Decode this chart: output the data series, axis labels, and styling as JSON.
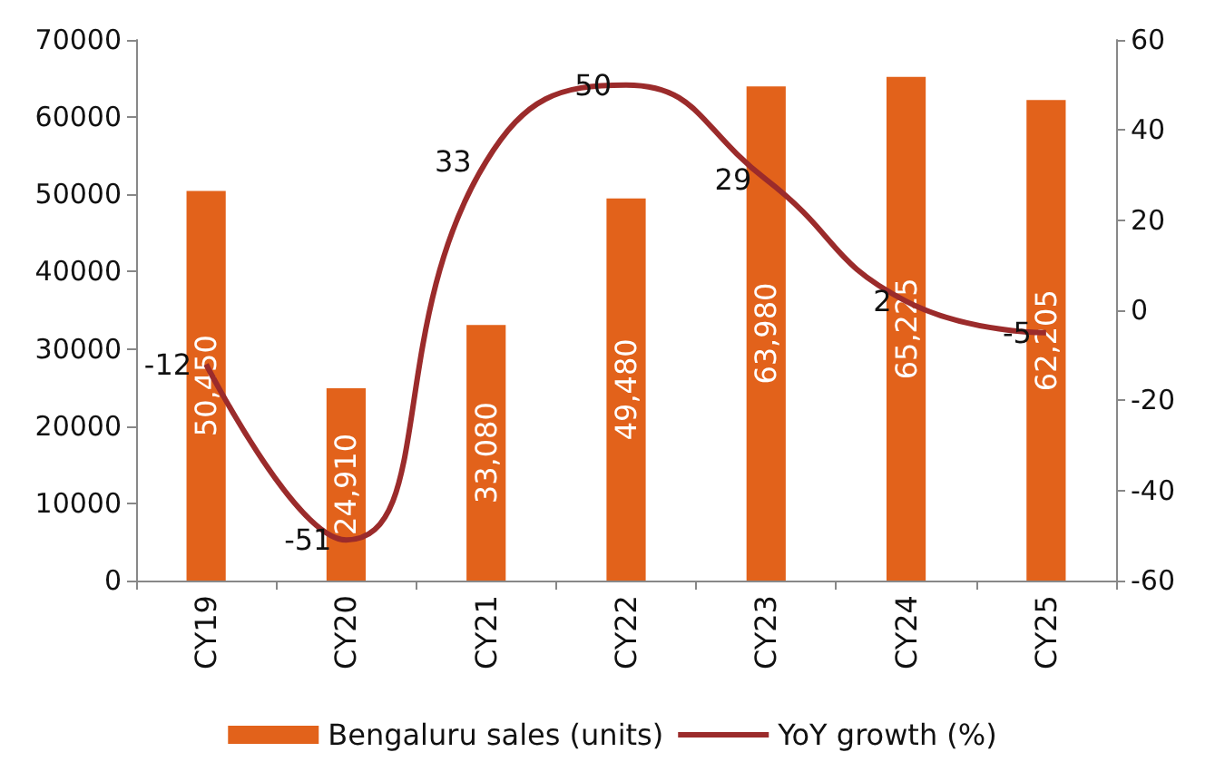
{
  "chart_data": {
    "type": "bar",
    "categories": [
      "CY19",
      "CY20",
      "CY21",
      "CY22",
      "CY23",
      "CY24",
      "CY25"
    ],
    "series": [
      {
        "name": "Bengaluru sales (units)",
        "color": "#e2621b",
        "values": [
          50450,
          24910,
          33080,
          49480,
          63980,
          65225,
          62205
        ],
        "value_labels": [
          "50,450",
          "24,910",
          "33,080",
          "49,480",
          "63,980",
          "65,225",
          "62,205"
        ]
      },
      {
        "name": "YoY growth (%)",
        "type": "line",
        "axis": "y2",
        "color": "#9b2b2b",
        "values": [
          -12,
          -51,
          33,
          50,
          29,
          2,
          -5
        ],
        "value_labels": [
          "-12",
          "-51",
          "33",
          "50",
          "29",
          "2",
          "-5"
        ]
      }
    ],
    "ylim": [
      0,
      70000
    ],
    "yticks": [
      0,
      10000,
      20000,
      30000,
      40000,
      50000,
      60000,
      70000
    ],
    "y2lim": [
      -60,
      60
    ],
    "y2ticks": [
      -60,
      -40,
      -20,
      0,
      20,
      40,
      60
    ],
    "grid": false,
    "legend": "bottom",
    "marker": "none"
  }
}
